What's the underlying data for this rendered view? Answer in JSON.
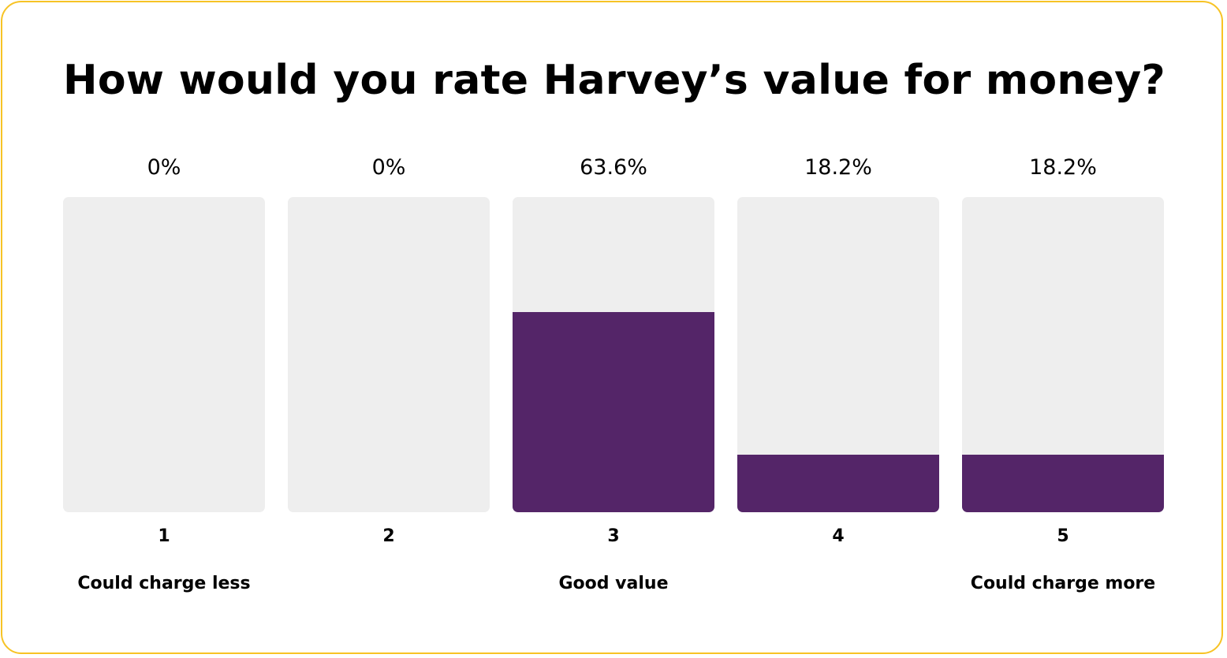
{
  "title": "How would you rate Harvey’s value for money?",
  "colors": {
    "border": "#f7c325",
    "bar_fill": "#542568",
    "bar_track": "#eeeeee"
  },
  "chart_data": {
    "type": "bar",
    "title": "How would you rate Harvey’s value for money?",
    "xlabel": "",
    "ylabel": "",
    "ylim": [
      0,
      100
    ],
    "categories": [
      "1",
      "2",
      "3",
      "4",
      "5"
    ],
    "values": [
      0,
      0,
      63.6,
      18.2,
      18.2
    ],
    "value_labels": [
      "0%",
      "0%",
      "63.6%",
      "18.2%",
      "18.2%"
    ],
    "scale_labels": [
      "Could charge less",
      "",
      "Good value",
      "",
      "Could charge more"
    ],
    "grid": false,
    "legend": "none"
  }
}
